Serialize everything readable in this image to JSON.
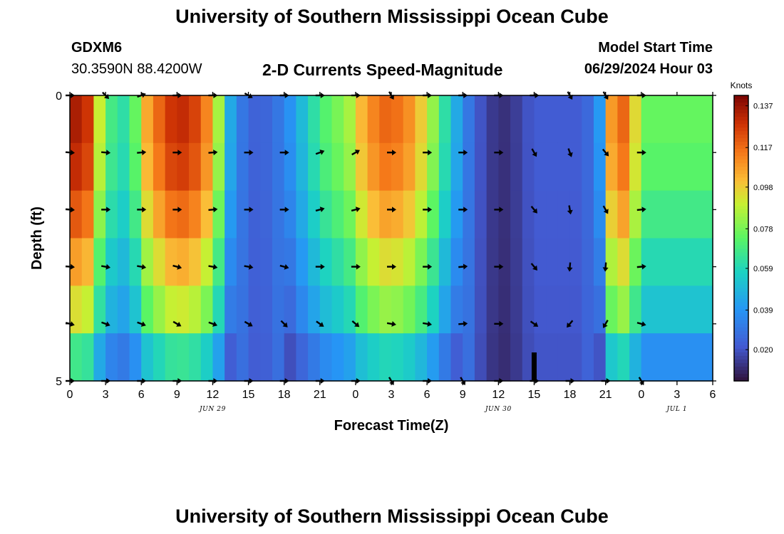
{
  "header": {
    "title": "University of Southern Mississippi Ocean Cube",
    "station_id": "GDXM6",
    "station_coords": "30.3590N  88.4200W",
    "subtitle": "2-D Currents Speed-Magnitude",
    "model_start_label": "Model Start Time",
    "model_start_value": "06/29/2024 Hour 03"
  },
  "footer": {
    "title": "University of Southern Mississippi Ocean Cube"
  },
  "chart_data": {
    "type": "heatmap",
    "title": "2-D Currents Speed-Magnitude",
    "xlabel": "Forecast Time(Z)",
    "ylabel": "Depth (ft)",
    "x_ticks": [
      "0",
      "3",
      "6",
      "9",
      "12",
      "15",
      "18",
      "21",
      "0",
      "3",
      "6",
      "9",
      "12",
      "15",
      "18",
      "21",
      "0",
      "3",
      "6"
    ],
    "date_labels": [
      "JUN 29",
      "JUN 30",
      "JUL 1"
    ],
    "y_ticks": [
      "0",
      "5"
    ],
    "ylim": [
      0,
      5
    ],
    "colorbar": {
      "label": "Knots",
      "ticks": [
        "0.137",
        "0.117",
        "0.098",
        "0.078",
        "0.059",
        "0.039",
        "0.020"
      ],
      "range": [
        0.005,
        0.142
      ]
    },
    "speed_profile_by_hour": [
      {
        "hour": 0,
        "speed": 0.134
      },
      {
        "hour": 1,
        "speed": 0.128
      },
      {
        "hour": 2,
        "speed": 0.09
      },
      {
        "hour": 3,
        "speed": 0.068
      },
      {
        "hour": 4,
        "speed": 0.062
      },
      {
        "hour": 5,
        "speed": 0.075
      },
      {
        "hour": 6,
        "speed": 0.105
      },
      {
        "hour": 7,
        "speed": 0.118
      },
      {
        "hour": 8,
        "speed": 0.128
      },
      {
        "hour": 9,
        "speed": 0.13
      },
      {
        "hour": 10,
        "speed": 0.125
      },
      {
        "hour": 11,
        "speed": 0.112
      },
      {
        "hour": 12,
        "speed": 0.085
      },
      {
        "hour": 13,
        "speed": 0.045
      },
      {
        "hour": 14,
        "speed": 0.03
      },
      {
        "hour": 15,
        "speed": 0.024
      },
      {
        "hour": 16,
        "speed": 0.025
      },
      {
        "hour": 17,
        "speed": 0.03
      },
      {
        "hour": 18,
        "speed": 0.038
      },
      {
        "hour": 19,
        "speed": 0.05
      },
      {
        "hour": 20,
        "speed": 0.062
      },
      {
        "hour": 21,
        "speed": 0.072
      },
      {
        "hour": 22,
        "speed": 0.078
      },
      {
        "hour": 23,
        "speed": 0.085
      },
      {
        "hour": 24,
        "speed": 0.102
      },
      {
        "hour": 25,
        "speed": 0.112
      },
      {
        "hour": 26,
        "speed": 0.118
      },
      {
        "hour": 27,
        "speed": 0.116
      },
      {
        "hour": 28,
        "speed": 0.11
      },
      {
        "hour": 29,
        "speed": 0.098
      },
      {
        "hour": 30,
        "speed": 0.082
      },
      {
        "hour": 31,
        "speed": 0.062
      },
      {
        "hour": 32,
        "speed": 0.045
      },
      {
        "hour": 33,
        "speed": 0.03
      },
      {
        "hour": 34,
        "speed": 0.02
      },
      {
        "hour": 35,
        "speed": 0.014
      },
      {
        "hour": 36,
        "speed": 0.012
      },
      {
        "hour": 37,
        "speed": 0.015
      },
      {
        "hour": 38,
        "speed": 0.02
      },
      {
        "hour": 39,
        "speed": 0.022
      },
      {
        "hour": 40,
        "speed": 0.022
      },
      {
        "hour": 41,
        "speed": 0.022
      },
      {
        "hour": 42,
        "speed": 0.022
      },
      {
        "hour": 43,
        "speed": 0.026
      },
      {
        "hour": 44,
        "speed": 0.04
      },
      {
        "hour": 45,
        "speed": 0.108
      },
      {
        "hour": 46,
        "speed": 0.118
      },
      {
        "hour": 47,
        "speed": 0.095
      },
      {
        "hour": 48,
        "speed": 0.07
      }
    ],
    "depth_factors": [
      1.0,
      0.97,
      0.9,
      0.8,
      0.7,
      0.5
    ],
    "vector_hours": [
      0,
      3,
      6,
      9,
      12,
      15,
      18,
      21,
      24,
      27,
      30,
      33,
      36,
      39,
      42,
      45,
      48
    ],
    "vector_depths": [
      0,
      1,
      2,
      3,
      4,
      5
    ],
    "vector_directions_deg": [
      [
        0,
        45,
        -20,
        0,
        0,
        30,
        0,
        0,
        0,
        60,
        0,
        0,
        0,
        0,
        60,
        60,
        0
      ],
      [
        5,
        5,
        -5,
        0,
        -5,
        0,
        0,
        -20,
        -30,
        0,
        0,
        0,
        0,
        60,
        70,
        50,
        0
      ],
      [
        5,
        0,
        0,
        0,
        -5,
        0,
        0,
        -15,
        -15,
        0,
        0,
        0,
        0,
        50,
        80,
        60,
        -5
      ],
      [
        5,
        10,
        10,
        15,
        10,
        10,
        15,
        0,
        0,
        0,
        0,
        -5,
        0,
        50,
        95,
        95,
        -5
      ],
      [
        15,
        20,
        20,
        30,
        20,
        30,
        45,
        35,
        40,
        10,
        10,
        -5,
        0,
        35,
        130,
        120,
        15
      ],
      [
        0,
        0,
        0,
        0,
        0,
        0,
        0,
        0,
        0,
        60,
        0,
        60,
        0,
        0,
        0,
        0,
        60
      ]
    ],
    "min_marker": {
      "hour": 39,
      "depth": 5
    }
  }
}
